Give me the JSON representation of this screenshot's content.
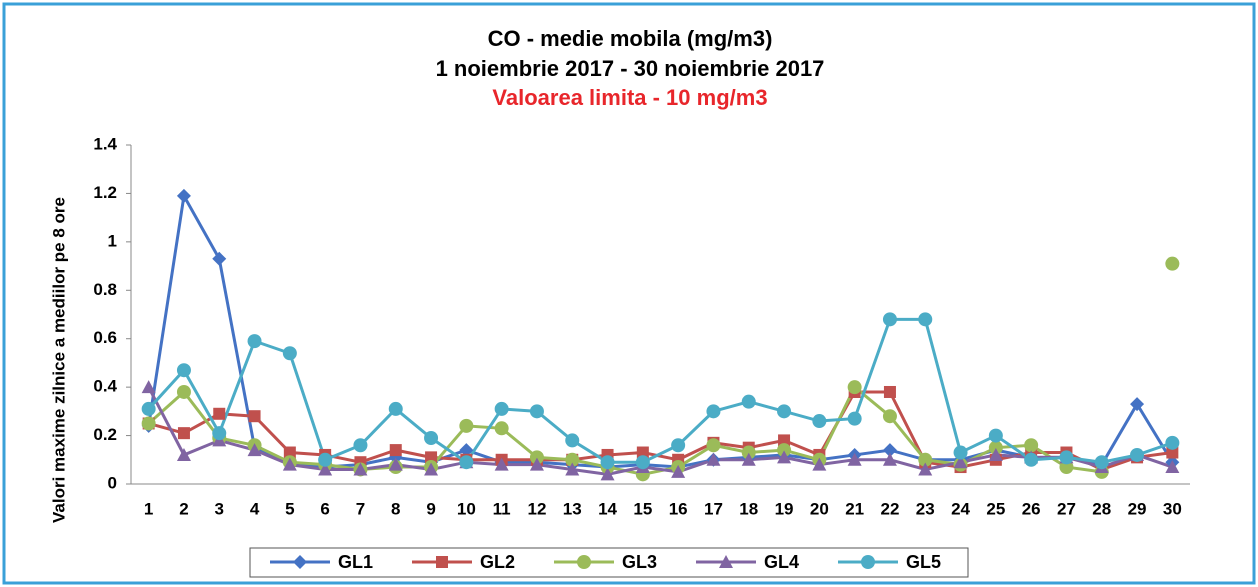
{
  "chart_data": {
    "type": "line",
    "title": "CO - medie mobila (mg/m3)",
    "subtitle": "1 noiembrie 2017 - 30 noiembrie 2017",
    "annotation": "Valoarea limita - 10 mg/m3",
    "ylabel": "Valori maxime zilnice a mediilor pe 8 ore",
    "categories": [
      "1",
      "2",
      "3",
      "4",
      "5",
      "6",
      "7",
      "8",
      "9",
      "10",
      "11",
      "12",
      "13",
      "14",
      "15",
      "16",
      "17",
      "18",
      "19",
      "20",
      "21",
      "22",
      "23",
      "24",
      "25",
      "26",
      "27",
      "28",
      "29",
      "30"
    ],
    "ylim": [
      0,
      1.4
    ],
    "yticks": [
      0,
      0.2,
      0.4,
      0.6,
      0.8,
      1,
      1.2,
      1.4
    ],
    "grid": false,
    "legend": "bottom",
    "series": [
      {
        "name": "GL1",
        "color": "#4472c4",
        "marker": "diamond",
        "values": [
          0.24,
          1.19,
          0.93,
          0.15,
          0.09,
          0.07,
          0.08,
          0.11,
          0.09,
          0.14,
          0.09,
          0.09,
          0.08,
          0.07,
          0.08,
          0.07,
          0.1,
          0.11,
          0.12,
          0.1,
          0.12,
          0.14,
          0.1,
          0.1,
          0.14,
          0.11,
          0.11,
          0.08,
          0.33,
          0.09
        ]
      },
      {
        "name": "GL2",
        "color": "#c0504d",
        "marker": "square",
        "values": [
          0.25,
          0.21,
          0.29,
          0.28,
          0.13,
          0.12,
          0.09,
          0.14,
          0.11,
          0.1,
          0.1,
          0.1,
          0.1,
          0.12,
          0.13,
          0.1,
          0.17,
          0.15,
          0.18,
          0.12,
          0.38,
          0.38,
          0.09,
          0.07,
          0.1,
          0.13,
          0.13,
          0.06,
          0.11,
          0.13
        ]
      },
      {
        "name": "GL3",
        "color": "#9bbb59",
        "marker": "circle",
        "values": [
          0.25,
          0.38,
          0.19,
          0.16,
          0.09,
          0.08,
          0.06,
          0.07,
          0.07,
          0.24,
          0.23,
          0.11,
          0.1,
          0.07,
          0.04,
          0.07,
          0.16,
          0.13,
          0.14,
          0.1,
          0.4,
          0.28,
          0.1,
          0.08,
          0.15,
          0.16,
          0.07,
          0.05,
          null,
          0.91
        ]
      },
      {
        "name": "GL4",
        "color": "#8064a2",
        "marker": "triangle",
        "values": [
          0.4,
          0.12,
          0.18,
          0.14,
          0.08,
          0.06,
          0.06,
          0.08,
          0.06,
          0.09,
          0.08,
          0.08,
          0.06,
          0.04,
          0.07,
          0.05,
          0.1,
          0.1,
          0.11,
          0.08,
          0.1,
          0.1,
          0.06,
          0.09,
          0.12,
          0.11,
          0.11,
          0.07,
          0.12,
          0.07
        ]
      },
      {
        "name": "GL5",
        "color": "#4bacc6",
        "marker": "circle",
        "values": [
          0.31,
          0.47,
          0.21,
          0.59,
          0.54,
          0.1,
          0.16,
          0.31,
          0.19,
          0.09,
          0.31,
          0.3,
          0.18,
          0.09,
          0.09,
          0.16,
          0.3,
          0.34,
          0.3,
          0.26,
          0.27,
          0.68,
          0.68,
          0.13,
          0.2,
          0.1,
          0.11,
          0.09,
          0.12,
          0.17
        ]
      }
    ]
  }
}
